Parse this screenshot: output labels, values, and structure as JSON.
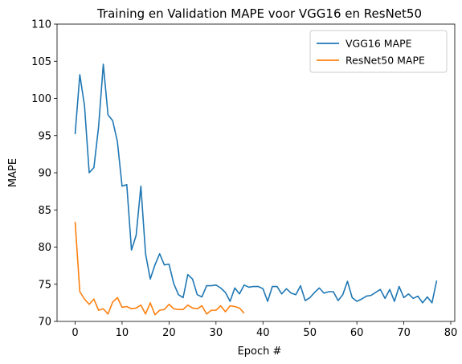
{
  "chart_data": {
    "type": "line",
    "title": "Training en Validation MAPE voor VGG16 en ResNet50",
    "xlabel": "Epoch #",
    "ylabel": "MAPE",
    "xlim": [
      -3.85,
      80.85
    ],
    "ylim": [
      70,
      110
    ],
    "xticks": [
      0,
      10,
      20,
      30,
      40,
      50,
      60,
      70,
      80
    ],
    "yticks": [
      70,
      75,
      80,
      85,
      90,
      95,
      100,
      105,
      110
    ],
    "grid": false,
    "legend_position": "top-right",
    "series": [
      {
        "name": "VGG16 MAPE",
        "color": "#1f77b4",
        "x": [
          0,
          1,
          2,
          3,
          4,
          5,
          6,
          7,
          8,
          9,
          10,
          11,
          12,
          13,
          14,
          15,
          16,
          17,
          18,
          19,
          20,
          21,
          22,
          23,
          24,
          25,
          26,
          27,
          28,
          29,
          30,
          31,
          32,
          33,
          34,
          35,
          36,
          37,
          38,
          39,
          40,
          41,
          42,
          43,
          44,
          45,
          46,
          47,
          48,
          49,
          50,
          51,
          52,
          53,
          54,
          55,
          56,
          57,
          58,
          59,
          60,
          61,
          62,
          63,
          64,
          65,
          66,
          67,
          68,
          69,
          70,
          71,
          72,
          73,
          74,
          75,
          76,
          77
        ],
        "values": [
          95.2,
          103.2,
          99.0,
          90.0,
          90.7,
          96.2,
          104.6,
          97.8,
          97.0,
          94.2,
          88.2,
          88.4,
          79.6,
          81.6,
          88.2,
          79.1,
          75.7,
          77.6,
          79.1,
          77.6,
          77.7,
          75.1,
          73.6,
          73.2,
          76.3,
          75.7,
          73.6,
          73.3,
          74.8,
          74.8,
          74.9,
          74.5,
          73.9,
          72.7,
          74.5,
          73.7,
          74.9,
          74.6,
          74.7,
          74.7,
          74.4,
          72.7,
          74.7,
          74.7,
          73.7,
          74.4,
          73.8,
          73.6,
          74.8,
          72.8,
          73.2,
          73.9,
          74.5,
          73.8,
          74.0,
          74.0,
          72.8,
          73.6,
          75.4,
          73.2,
          72.7,
          73.0,
          73.4,
          73.5,
          73.9,
          74.3,
          73.1,
          74.3,
          72.7,
          74.7,
          73.2,
          73.7,
          73.1,
          73.4,
          72.5,
          73.3,
          72.5,
          75.5
        ]
      },
      {
        "name": "ResNet50 MAPE",
        "color": "#ff7f0e",
        "x": [
          0,
          1,
          2,
          3,
          4,
          5,
          6,
          7,
          8,
          9,
          10,
          11,
          12,
          13,
          14,
          15,
          16,
          17,
          18,
          19,
          20,
          21,
          22,
          23,
          24,
          25,
          26,
          27,
          28,
          29,
          30,
          31,
          32,
          33,
          34,
          35,
          36
        ],
        "values": [
          83.4,
          74.0,
          73.0,
          72.3,
          73.0,
          71.5,
          71.7,
          71.0,
          72.6,
          73.2,
          71.9,
          72.0,
          71.7,
          71.8,
          72.2,
          71.0,
          72.5,
          70.9,
          71.5,
          71.6,
          72.3,
          71.7,
          71.6,
          71.6,
          72.2,
          71.8,
          71.7,
          72.1,
          71.0,
          71.5,
          71.5,
          72.1,
          71.3,
          72.1,
          72.0,
          71.8,
          71.1
        ]
      }
    ]
  }
}
